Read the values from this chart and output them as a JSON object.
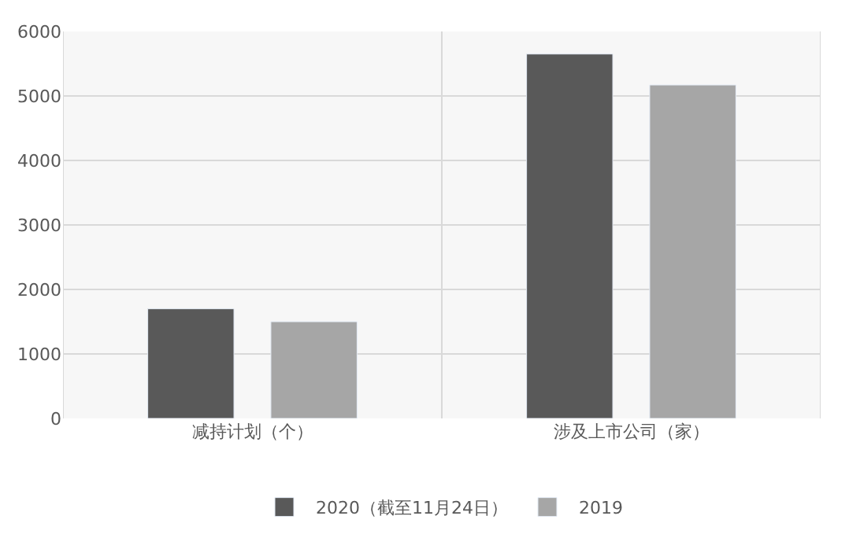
{
  "chart_data": {
    "type": "bar",
    "categories": [
      "减持计划（个）",
      "涉及上市公司（家）"
    ],
    "series": [
      {
        "name": "2020（截至11月24日）",
        "color": "#595959",
        "values": [
          1700,
          5650
        ]
      },
      {
        "name": "2019",
        "color": "#a6a6a6",
        "values": [
          1500,
          5170
        ]
      }
    ],
    "ylim": [
      0,
      6000
    ],
    "yticks": [
      0,
      1000,
      2000,
      3000,
      4000,
      5000,
      6000
    ],
    "grid": true,
    "legend": "bottom"
  }
}
